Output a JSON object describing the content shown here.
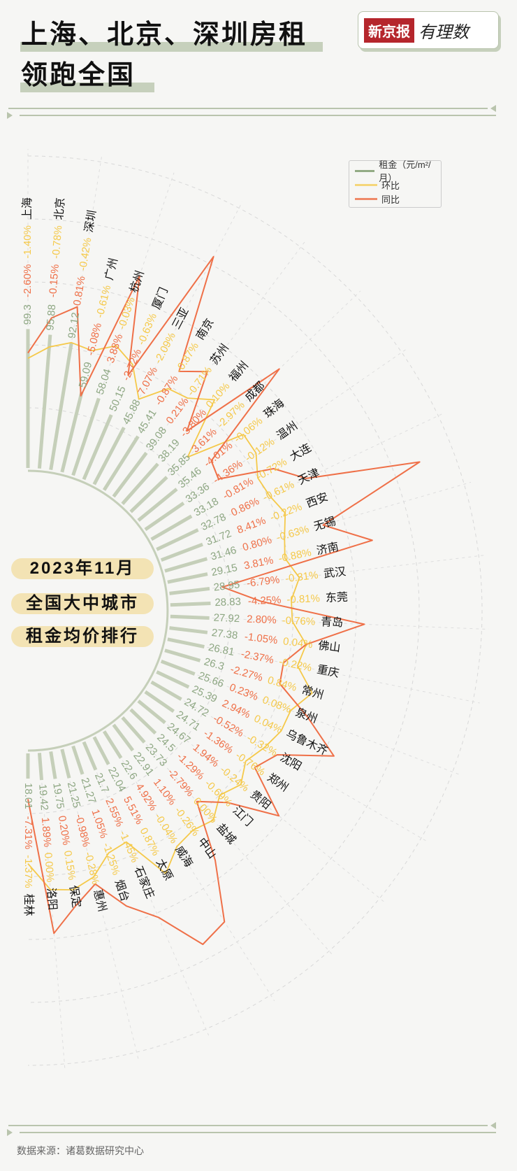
{
  "header": {
    "title_line1": "上海、北京、深圳房租",
    "title_line2": "领跑全国",
    "logo_brand": "新京报",
    "logo_column": "有理数"
  },
  "side_labels": [
    "2023年11月",
    "全国大中城市",
    "租金均价排行"
  ],
  "legend": {
    "rent": "租金（元/m²/月）",
    "mom": "环比",
    "yoy": "同比"
  },
  "colors": {
    "rent_bar": "#c5cfb9",
    "rent_text": "#8ea783",
    "mom": "#f5c94a",
    "yoy": "#ef7048"
  },
  "footer": {
    "source": "数据来源：诸葛数据研究中心"
  },
  "chart_data": {
    "type": "radial-bar-line",
    "series": [
      "租金（元/m²/月）",
      "环比",
      "同比"
    ],
    "units": {
      "rent": "元/m²/月",
      "mom": "%",
      "yoy": "%"
    },
    "cities": [
      {
        "name": "上海",
        "rent": 99.3,
        "mom": -1.4,
        "yoy": -2.6
      },
      {
        "name": "北京",
        "rent": 95.88,
        "mom": -0.78,
        "yoy": -0.15
      },
      {
        "name": "深圳",
        "rent": 92.12,
        "mom": -0.42,
        "yoy": 0.81
      },
      {
        "name": "广州",
        "rent": 59.09,
        "mom": -0.61,
        "yoy": -5.08
      },
      {
        "name": "杭州",
        "rent": 58.04,
        "mom": -0.03,
        "yoy": 3.88
      },
      {
        "name": "厦门",
        "rent": 50.15,
        "mom": -0.63,
        "yoy": -2.72
      },
      {
        "name": "三亚",
        "rent": 45.88,
        "mom": -2.09,
        "yoy": 7.07
      },
      {
        "name": "南京",
        "rent": 45.41,
        "mom": -0.87,
        "yoy": -0.87
      },
      {
        "name": "苏州",
        "rent": 39.08,
        "mom": -0.71,
        "yoy": 0.21
      },
      {
        "name": "福州",
        "rent": 38.19,
        "mom": 0.1,
        "yoy": -3.8
      },
      {
        "name": "成都",
        "rent": 35.85,
        "mom": -2.97,
        "yoy": 3.61
      },
      {
        "name": "珠海",
        "rent": 35.46,
        "mom": -0.06,
        "yoy": -4.01
      },
      {
        "name": "温州",
        "rent": 33.36,
        "mom": -0.12,
        "yoy": -4.36
      },
      {
        "name": "大连",
        "rent": 33.18,
        "mom": -0.72,
        "yoy": -0.81
      },
      {
        "name": "天津",
        "rent": 32.78,
        "mom": -0.61,
        "yoy": 0.86
      },
      {
        "name": "西安",
        "rent": 31.72,
        "mom": -0.22,
        "yoy": 8.41
      },
      {
        "name": "无锡",
        "rent": 31.46,
        "mom": -0.63,
        "yoy": 0.8
      },
      {
        "name": "济南",
        "rent": 29.15,
        "mom": -0.88,
        "yoy": 3.81
      },
      {
        "name": "武汉",
        "rent": 28.95,
        "mom": -0.31,
        "yoy": -6.79
      },
      {
        "name": "东莞",
        "rent": 28.83,
        "mom": -0.81,
        "yoy": -4.25
      },
      {
        "name": "青岛",
        "rent": 27.92,
        "mom": -0.76,
        "yoy": 2.8
      },
      {
        "name": "佛山",
        "rent": 27.38,
        "mom": 0.04,
        "yoy": -1.05
      },
      {
        "name": "重庆",
        "rent": 26.81,
        "mom": -0.22,
        "yoy": -2.37
      },
      {
        "name": "常州",
        "rent": 26.3,
        "mom": 0.84,
        "yoy": -2.27
      },
      {
        "name": "泉州",
        "rent": 25.66,
        "mom": 0.08,
        "yoy": 0.23
      },
      {
        "name": "乌鲁木齐",
        "rent": 25.39,
        "mom": 0.04,
        "yoy": 2.94
      },
      {
        "name": "沈阳",
        "rent": 24.72,
        "mom": -0.32,
        "yoy": -0.52
      },
      {
        "name": "郑州",
        "rent": 24.71,
        "mom": -0.76,
        "yoy": -1.36
      },
      {
        "name": "贵阳",
        "rent": 24.67,
        "mom": -0.24,
        "yoy": 1.94
      },
      {
        "name": "江门",
        "rent": 24.5,
        "mom": -0.69,
        "yoy": -1.29
      },
      {
        "name": "盐城",
        "rent": 23.73,
        "mom": 0.0,
        "yoy": -2.79
      },
      {
        "name": "中山",
        "rent": 22.91,
        "mom": -0.26,
        "yoy": 1.1
      },
      {
        "name": "威海",
        "rent": 22.6,
        "mom": -0.04,
        "yoy": 4.92
      },
      {
        "name": "太原",
        "rent": 22.04,
        "mom": 0.87,
        "yoy": 5.51
      },
      {
        "name": "石家庄",
        "rent": 21.7,
        "mom": -1.45,
        "yoy": 2.55
      },
      {
        "name": "烟台",
        "rent": 21.27,
        "mom": -1.25,
        "yoy": 1.05
      },
      {
        "name": "惠州",
        "rent": 21.25,
        "mom": -0.28,
        "yoy": -0.98
      },
      {
        "name": "保定",
        "rent": 19.75,
        "mom": 0.15,
        "yoy": 0.2
      },
      {
        "name": "洛阳",
        "rent": 19.42,
        "mom": 0.0,
        "yoy": 1.89
      },
      {
        "name": "桂林",
        "rent": 18.01,
        "mom": -1.37,
        "yoy": -7.31
      }
    ]
  }
}
